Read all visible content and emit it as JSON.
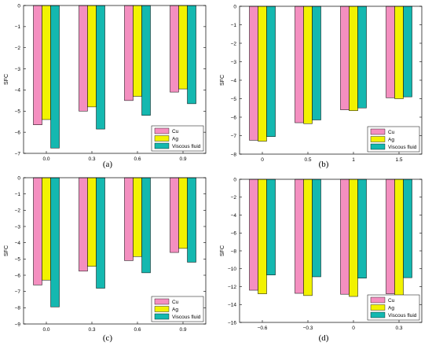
{
  "colors": {
    "cu": "#f48fc0",
    "ag": "#f2f200",
    "viscous": "#14b8b0"
  },
  "chart_data": [
    {
      "type": "bar",
      "panel_label": "(a)",
      "ylabel": "SFC",
      "categories": [
        "0.0",
        "0.3",
        "0.6",
        "0.9"
      ],
      "ylim": [
        -7,
        0
      ],
      "yticks": [
        0,
        -1,
        -2,
        -3,
        -4,
        -5,
        -6,
        -7
      ],
      "legend_position": "bottom-right",
      "series": [
        {
          "name": "Cu",
          "values": [
            -5.65,
            -5.0,
            -4.5,
            -4.1
          ]
        },
        {
          "name": "Ag",
          "values": [
            -5.4,
            -4.8,
            -4.3,
            -3.95
          ]
        },
        {
          "name": "Viscous fluid",
          "values": [
            -6.75,
            -5.85,
            -5.2,
            -4.65
          ]
        }
      ]
    },
    {
      "type": "bar",
      "panel_label": "(b)",
      "ylabel": "SFC",
      "categories": [
        "0",
        "0.5",
        "1",
        "1.5"
      ],
      "ylim": [
        -8,
        0
      ],
      "yticks": [
        0,
        -1,
        -2,
        -3,
        -4,
        -5,
        -6,
        -7,
        -8
      ],
      "legend_position": "bottom-right",
      "series": [
        {
          "name": "Cu",
          "values": [
            -7.25,
            -6.3,
            -5.6,
            -4.95
          ]
        },
        {
          "name": "Ag",
          "values": [
            -7.3,
            -6.35,
            -5.65,
            -5.0
          ]
        },
        {
          "name": "Viscous fluid",
          "values": [
            -7.05,
            -6.15,
            -5.5,
            -4.9
          ]
        }
      ]
    },
    {
      "type": "bar",
      "panel_label": "(c)",
      "ylabel": "SFC",
      "categories": [
        "0.0",
        "0.3",
        "0.6",
        "0.9"
      ],
      "ylim": [
        -9,
        0
      ],
      "yticks": [
        0,
        -1,
        -2,
        -3,
        -4,
        -5,
        -6,
        -7,
        -8,
        -9
      ],
      "legend_position": "bottom-right",
      "series": [
        {
          "name": "Cu",
          "values": [
            -6.6,
            -5.75,
            -5.1,
            -4.6
          ]
        },
        {
          "name": "Ag",
          "values": [
            -6.3,
            -5.45,
            -4.85,
            -4.35
          ]
        },
        {
          "name": "Viscous fluid",
          "values": [
            -7.95,
            -6.8,
            -5.85,
            -5.2
          ]
        }
      ]
    },
    {
      "type": "bar",
      "panel_label": "(d)",
      "ylabel": "SFC",
      "categories": [
        "-0.6",
        "-0.3",
        "0",
        "0.3"
      ],
      "ylim": [
        -16,
        0
      ],
      "yticks": [
        0,
        -2,
        -4,
        -6,
        -8,
        -10,
        -12,
        -14,
        -16
      ],
      "legend_position": "bottom-right",
      "series": [
        {
          "name": "Cu",
          "values": [
            -12.4,
            -12.75,
            -12.85,
            -12.8
          ]
        },
        {
          "name": "Ag",
          "values": [
            -12.8,
            -13.0,
            -13.1,
            -12.95
          ]
        },
        {
          "name": "Viscous fluid",
          "values": [
            -10.7,
            -10.9,
            -11.05,
            -11.0
          ]
        }
      ]
    }
  ]
}
